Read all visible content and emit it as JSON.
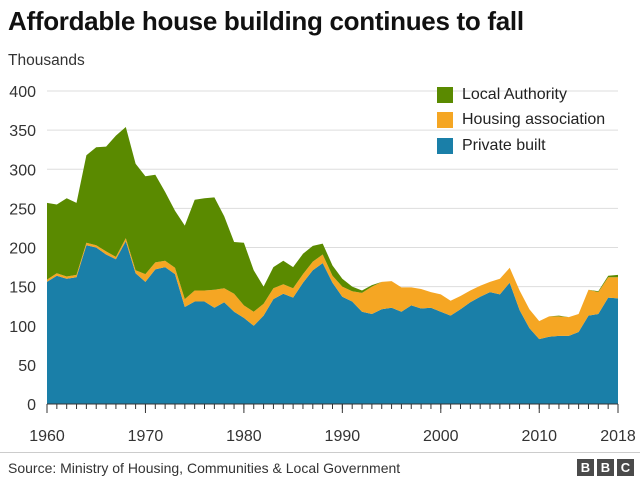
{
  "chart_data": {
    "type": "area",
    "stacked": true,
    "title": "Affordable house building continues to fall",
    "ylabel": "Thousands",
    "xlabel": "",
    "ylim": [
      0,
      400
    ],
    "xlim": [
      1960,
      2018
    ],
    "y_ticks": [
      0,
      50,
      100,
      150,
      200,
      250,
      300,
      350,
      400
    ],
    "x_ticks": [
      1960,
      1970,
      1980,
      1990,
      2000,
      2010,
      2018
    ],
    "x_tick_labels": [
      "1960",
      "1970",
      "1980",
      "1990",
      "2000",
      "2010",
      "2018"
    ],
    "grid": "horizontal",
    "legend_position": "top-right",
    "x": [
      1960,
      1961,
      1962,
      1963,
      1964,
      1965,
      1966,
      1967,
      1968,
      1969,
      1970,
      1971,
      1972,
      1973,
      1974,
      1975,
      1976,
      1977,
      1978,
      1979,
      1980,
      1981,
      1982,
      1983,
      1984,
      1985,
      1986,
      1987,
      1988,
      1989,
      1990,
      1991,
      1992,
      1993,
      1994,
      1995,
      1996,
      1997,
      1998,
      1999,
      2000,
      2001,
      2002,
      2003,
      2004,
      2005,
      2006,
      2007,
      2008,
      2009,
      2010,
      2011,
      2012,
      2013,
      2014,
      2015,
      2016,
      2017,
      2018
    ],
    "series": [
      {
        "name": "Private built",
        "color": "#1a7fa8",
        "values": [
          156,
          164,
          160,
          162,
          203,
          200,
          191,
          185,
          208,
          167,
          156,
          172,
          175,
          166,
          124,
          131,
          131,
          123,
          130,
          118,
          110,
          100,
          113,
          134,
          141,
          136,
          155,
          171,
          180,
          155,
          137,
          131,
          118,
          115,
          121,
          123,
          118,
          126,
          122,
          123,
          118,
          113,
          121,
          130,
          137,
          143,
          140,
          155,
          120,
          97,
          83,
          86,
          87,
          87,
          92,
          113,
          115,
          136,
          135
        ]
      },
      {
        "name": "Housing association",
        "color": "#f5a623",
        "values": [
          3,
          3,
          3,
          3,
          3,
          3,
          4,
          3,
          4,
          4,
          10,
          9,
          8,
          8,
          10,
          14,
          14,
          23,
          18,
          23,
          16,
          18,
          15,
          14,
          12,
          12,
          11,
          11,
          11,
          9,
          13,
          13,
          24,
          35,
          35,
          34,
          31,
          23,
          25,
          20,
          22,
          19,
          17,
          15,
          14,
          13,
          20,
          19,
          25,
          24,
          23,
          26,
          25,
          24,
          23,
          33,
          28,
          26,
          27
        ]
      },
      {
        "name": "Local Authority",
        "color": "#5a8a00",
        "values": [
          98,
          88,
          100,
          92,
          112,
          125,
          134,
          155,
          142,
          136,
          125,
          112,
          88,
          73,
          94,
          116,
          118,
          118,
          92,
          66,
          80,
          53,
          22,
          27,
          30,
          27,
          26,
          20,
          14,
          13,
          10,
          6,
          3,
          2,
          0,
          0,
          0,
          0,
          0,
          0,
          0,
          0,
          0,
          0,
          0,
          0,
          0,
          0,
          0,
          0,
          0,
          0,
          1,
          0,
          0,
          0,
          1,
          2,
          3
        ]
      }
    ],
    "legend_order": [
      "Local Authority",
      "Housing association",
      "Private built"
    ]
  },
  "footer": {
    "source": "Source: Ministry of Housing, Communities & Local Government",
    "logo_letters": [
      "B",
      "B",
      "C"
    ]
  }
}
